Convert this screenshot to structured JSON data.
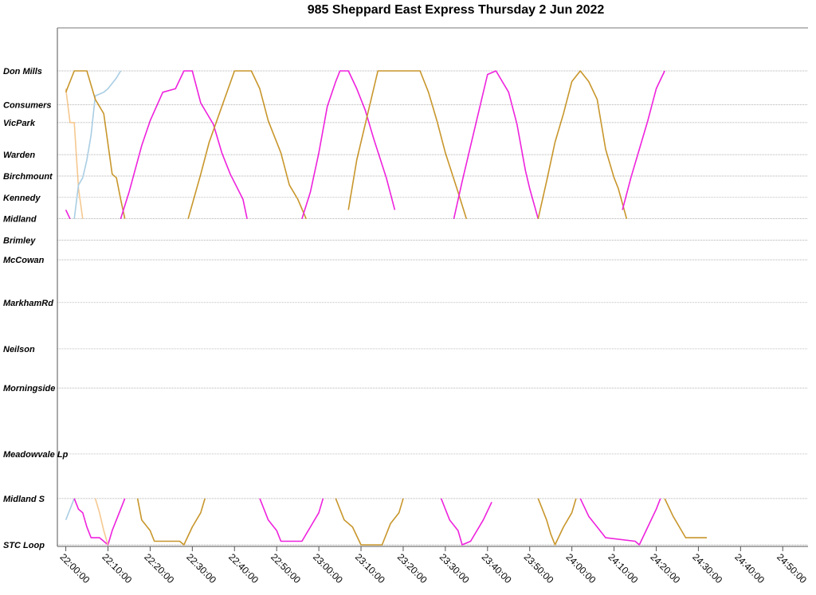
{
  "chart_data": {
    "type": "line",
    "title": "985 Sheppard East Express Thursday 2 Jun 2022",
    "xlabel": "",
    "ylabel": "",
    "xlim": [
      "21:58:00",
      "24:56:00"
    ],
    "x_ticks": [
      "22:00:00",
      "22:10:00",
      "22:20:00",
      "22:30:00",
      "22:40:00",
      "22:50:00",
      "23:00:00",
      "23:10:00",
      "23:20:00",
      "23:30:00",
      "23:40:00",
      "23:50:00",
      "24:00:00",
      "24:10:00",
      "24:20:00",
      "24:30:00",
      "24:40:00",
      "24:50:00"
    ],
    "stops": [
      {
        "name": "Don Mills",
        "km": 0
      },
      {
        "name": "Consumers",
        "km": 0.95
      },
      {
        "name": "VicPark",
        "km": 1.45
      },
      {
        "name": "Warden",
        "km": 2.35
      },
      {
        "name": "Birchmount",
        "km": 2.95
      },
      {
        "name": "Kennedy",
        "km": 3.55
      },
      {
        "name": "Midland",
        "km": 4.15
      },
      {
        "name": "Brimley",
        "km": 4.75
      },
      {
        "name": "McCowan",
        "km": 5.3
      },
      {
        "name": "MarkhamRd",
        "km": 6.5
      },
      {
        "name": "Neilson",
        "km": 7.8
      },
      {
        "name": "Morningside",
        "km": 8.9
      },
      {
        "name": "Meadowvale Lp",
        "km": 10.75
      },
      {
        "name": "Midland S",
        "km": 12.0
      },
      {
        "name": "STC Loop",
        "km": 13.3
      }
    ],
    "grid": true,
    "legend": "none",
    "series": [
      {
        "color": "#ee22dd",
        "segment": "west",
        "points": [
          [
            0,
            3.9
          ],
          [
            1,
            4.15
          ]
        ]
      },
      {
        "color": "#f5c890",
        "segment": "west",
        "points": [
          [
            0,
            0.5
          ],
          [
            1,
            1.45
          ],
          [
            2,
            1.45
          ],
          [
            3,
            3.3
          ],
          [
            4,
            4.15
          ]
        ]
      },
      {
        "color": "#a9cde3",
        "segment": "west",
        "points": [
          [
            2,
            4.15
          ],
          [
            3,
            3.2
          ],
          [
            4,
            3.0
          ],
          [
            5,
            2.5
          ],
          [
            6,
            1.8
          ],
          [
            7,
            0.7
          ],
          [
            8,
            0.65
          ],
          [
            9,
            0.6
          ],
          [
            10,
            0.5
          ],
          [
            12,
            0.2
          ],
          [
            13,
            0
          ]
        ]
      },
      {
        "color": "#c8962b",
        "segment": "west",
        "points": [
          [
            0,
            0.6
          ],
          [
            2,
            0
          ],
          [
            5,
            0
          ],
          [
            7,
            0.8
          ],
          [
            9,
            1.2
          ],
          [
            11,
            2.9
          ],
          [
            12,
            3
          ],
          [
            13,
            3.6
          ],
          [
            14,
            4.15
          ]
        ]
      },
      {
        "color": "#ee22dd",
        "segment": "west",
        "points": [
          [
            13,
            4.15
          ],
          [
            15,
            3.4
          ],
          [
            18,
            2.1
          ],
          [
            20,
            1.4
          ],
          [
            23,
            0.6
          ],
          [
            26,
            0.5
          ],
          [
            28,
            0
          ],
          [
            30,
            0
          ],
          [
            32,
            0.9
          ],
          [
            35,
            1.5
          ],
          [
            37,
            2.3
          ],
          [
            39,
            2.9
          ],
          [
            42,
            3.6
          ],
          [
            43,
            4.15
          ]
        ]
      },
      {
        "color": "#c8962b",
        "segment": "west",
        "points": [
          [
            29,
            4.15
          ],
          [
            32,
            2.9
          ],
          [
            34,
            2.0
          ],
          [
            37,
            1.0
          ],
          [
            40,
            0
          ],
          [
            44,
            0
          ],
          [
            46,
            0.5
          ],
          [
            48,
            1.4
          ],
          [
            51,
            2.3
          ],
          [
            53,
            3.2
          ],
          [
            55,
            3.6
          ],
          [
            57,
            4.15
          ]
        ]
      },
      {
        "color": "#ee22dd",
        "segment": "west",
        "points": [
          [
            56,
            4.15
          ],
          [
            58,
            3.4
          ],
          [
            60,
            2.3
          ],
          [
            62,
            1.0
          ],
          [
            64,
            0.3
          ],
          [
            65,
            0
          ],
          [
            67,
            0
          ],
          [
            69,
            0.5
          ],
          [
            71,
            1.1
          ],
          [
            73,
            1.9
          ],
          [
            76,
            3.0
          ],
          [
            78,
            3.9
          ]
        ]
      },
      {
        "color": "#c8962b",
        "segment": "west",
        "points": [
          [
            67,
            3.9
          ],
          [
            69,
            2.5
          ],
          [
            72,
            1.0
          ],
          [
            74,
            0
          ],
          [
            84,
            0
          ],
          [
            86,
            0.6
          ],
          [
            88,
            1.4
          ],
          [
            90,
            2.3
          ],
          [
            93,
            3.4
          ],
          [
            95,
            4.15
          ]
        ]
      },
      {
        "color": "#ee22dd",
        "segment": "west",
        "points": [
          [
            92,
            4.15
          ],
          [
            94,
            3.1
          ],
          [
            96,
            2.1
          ],
          [
            98,
            1.1
          ],
          [
            100,
            0.1
          ],
          [
            102,
            0
          ],
          [
            105,
            0.6
          ],
          [
            107,
            1.5
          ],
          [
            109,
            2.8
          ],
          [
            110,
            3.3
          ],
          [
            112,
            4.15
          ]
        ]
      },
      {
        "color": "#c8962b",
        "segment": "west",
        "points": [
          [
            112,
            4.15
          ],
          [
            114,
            3.1
          ],
          [
            116,
            2.0
          ],
          [
            118,
            1.2
          ],
          [
            120,
            0.3
          ],
          [
            122,
            0
          ],
          [
            124,
            0.3
          ],
          [
            126,
            0.8
          ],
          [
            128,
            2.2
          ],
          [
            130,
            3.0
          ],
          [
            131,
            3.3
          ],
          [
            133,
            4.15
          ]
        ]
      },
      {
        "color": "#ee22dd",
        "segment": "west",
        "points": [
          [
            132,
            3.9
          ],
          [
            134,
            3.0
          ],
          [
            136,
            2.2
          ],
          [
            138,
            1.4
          ],
          [
            140,
            0.5
          ],
          [
            142,
            0
          ]
        ]
      },
      {
        "color": "#a9cde3",
        "segment": "east",
        "points": [
          [
            0,
            12.6
          ],
          [
            1,
            12.3
          ],
          [
            2,
            12.0
          ]
        ]
      },
      {
        "color": "#ee22dd",
        "segment": "east",
        "points": [
          [
            2,
            12.0
          ],
          [
            3,
            12.3
          ],
          [
            4,
            12.4
          ],
          [
            5,
            12.8
          ],
          [
            6,
            13.1
          ],
          [
            7,
            13.1
          ],
          [
            8,
            13.1
          ],
          [
            9,
            13.2
          ],
          [
            10,
            13.3
          ],
          [
            11,
            12.9
          ],
          [
            12,
            12.6
          ],
          [
            13,
            12.3
          ],
          [
            14,
            12.0
          ]
        ]
      },
      {
        "color": "#f5c890",
        "segment": "east",
        "points": [
          [
            7,
            12.0
          ],
          [
            8,
            12.4
          ],
          [
            9,
            12.9
          ],
          [
            10,
            13.3
          ]
        ]
      },
      {
        "color": "#c8962b",
        "segment": "east",
        "points": [
          [
            17,
            12.0
          ],
          [
            18,
            12.6
          ],
          [
            20,
            12.9
          ],
          [
            21,
            13.2
          ],
          [
            27,
            13.2
          ],
          [
            28,
            13.3
          ],
          [
            30,
            12.8
          ],
          [
            32,
            12.4
          ],
          [
            33,
            12.0
          ]
        ]
      },
      {
        "color": "#ee22dd",
        "segment": "east",
        "points": [
          [
            46,
            12.0
          ],
          [
            48,
            12.6
          ],
          [
            50,
            12.9
          ],
          [
            51,
            13.2
          ],
          [
            56,
            13.2
          ],
          [
            58,
            12.8
          ],
          [
            60,
            12.4
          ],
          [
            61,
            12.0
          ]
        ]
      },
      {
        "color": "#c8962b",
        "segment": "east",
        "points": [
          [
            64,
            12.0
          ],
          [
            66,
            12.6
          ],
          [
            68,
            12.8
          ],
          [
            70,
            13.3
          ],
          [
            75,
            13.3
          ],
          [
            77,
            12.7
          ],
          [
            79,
            12.4
          ],
          [
            80,
            12.0
          ]
        ]
      },
      {
        "color": "#ee22dd",
        "segment": "east",
        "points": [
          [
            89,
            12.0
          ],
          [
            91,
            12.6
          ],
          [
            93,
            12.9
          ],
          [
            94,
            13.3
          ],
          [
            96,
            13.2
          ],
          [
            99,
            12.6
          ],
          [
            101,
            12.1
          ]
        ]
      },
      {
        "color": "#c8962b",
        "segment": "east",
        "points": [
          [
            112,
            12.0
          ],
          [
            114,
            12.6
          ],
          [
            115,
            13.0
          ],
          [
            116,
            13.3
          ],
          [
            118,
            12.8
          ],
          [
            120,
            12.4
          ],
          [
            121,
            12.0
          ]
        ]
      },
      {
        "color": "#ee22dd",
        "segment": "east",
        "points": [
          [
            122,
            12.0
          ],
          [
            124,
            12.5
          ],
          [
            126,
            12.8
          ],
          [
            128,
            13.1
          ],
          [
            135,
            13.2
          ],
          [
            136,
            13.3
          ],
          [
            138,
            12.8
          ],
          [
            140,
            12.3
          ],
          [
            141,
            12.0
          ]
        ]
      },
      {
        "color": "#c8962b",
        "segment": "east",
        "points": [
          [
            142,
            12.0
          ],
          [
            144,
            12.5
          ],
          [
            146,
            12.9
          ],
          [
            147,
            13.1
          ],
          [
            152,
            13.1
          ]
        ]
      }
    ]
  }
}
